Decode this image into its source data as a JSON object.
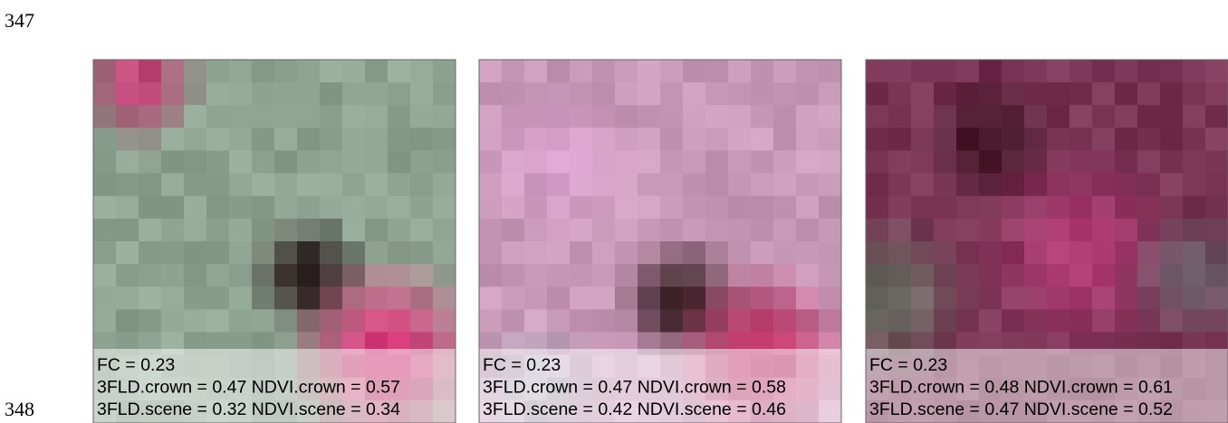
{
  "line_numbers": [
    "347",
    "348"
  ],
  "panels": [
    {
      "fc": "FC = 0.23",
      "crown": "3FLD.crown = 0.47 NDVI.crown = 0.57",
      "scene": "3FLD.scene = 0.32 NDVI.scene = 0.34"
    },
    {
      "fc": "FC = 0.23",
      "crown": "3FLD.crown = 0.47 NDVI.crown = 0.58",
      "scene": "3FLD.scene = 0.42 NDVI.scene = 0.46"
    },
    {
      "fc": "FC = 0.23",
      "crown": "3FLD.crown = 0.48 NDVI.crown = 0.61",
      "scene": "3FLD.scene = 0.47 NDVI.scene = 0.52"
    }
  ]
}
